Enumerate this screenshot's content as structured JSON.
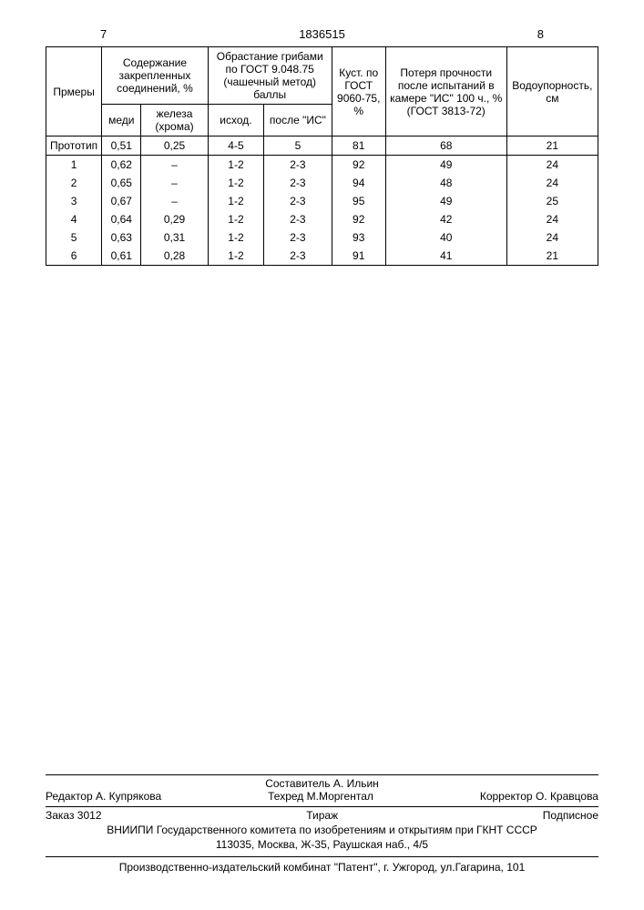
{
  "pageLeft": "7",
  "docNumber": "1836515",
  "pageRight": "8",
  "headers": {
    "col1": "Прмеры",
    "col2": "Содержание закрепленных соединений, %",
    "col2a": "меди",
    "col2b": "железа (хрома)",
    "col3": "Обрастание грибами по ГОСТ 9.048.75 (чашечный метод) баллы",
    "col3a": "исход.",
    "col3b": "после \"ИС\"",
    "col4": "Куст. по ГОСТ 9060-75, %",
    "col5": "Потеря прочности после испытаний в камере \"ИС\" 100 ч., % (ГОСТ 3813-72)",
    "col6": "Водоупорность, см"
  },
  "prototypeLabel": "Прототип",
  "prototype": [
    "0,51",
    "0,25",
    "4-5",
    "5",
    "81",
    "68",
    "21"
  ],
  "rows": [
    [
      "1",
      "0,62",
      "–",
      "1-2",
      "2-3",
      "92",
      "49",
      "24"
    ],
    [
      "2",
      "0,65",
      "–",
      "1-2",
      "2-3",
      "94",
      "48",
      "24"
    ],
    [
      "3",
      "0,67",
      "–",
      "1-2",
      "2-3",
      "95",
      "49",
      "25"
    ],
    [
      "4",
      "0,64",
      "0,29",
      "1-2",
      "2-3",
      "92",
      "42",
      "24"
    ],
    [
      "5",
      "0,63",
      "0,31",
      "1-2",
      "2-3",
      "93",
      "40",
      "24"
    ],
    [
      "6",
      "0,61",
      "0,28",
      "1-2",
      "2-3",
      "91",
      "41",
      "21"
    ]
  ],
  "credits": {
    "compiler": "Составитель А. Ильин",
    "editor": "Редактор А. Купрякова",
    "techred": "Техред М.Моргентал",
    "corrector": "Корректор О. Кравцова"
  },
  "order": {
    "zakaz": "Заказ 3012",
    "tirazh": "Тираж",
    "podpis": "Подписное"
  },
  "org1": "ВНИИПИ Государственного комитета по изобретениям и открытиям при ГКНТ СССР",
  "org2": "113035, Москва, Ж-35, Раушская наб., 4/5",
  "prod": "Производственно-издательский комбинат \"Патент\", г. Ужгород, ул.Гагарина, 101"
}
